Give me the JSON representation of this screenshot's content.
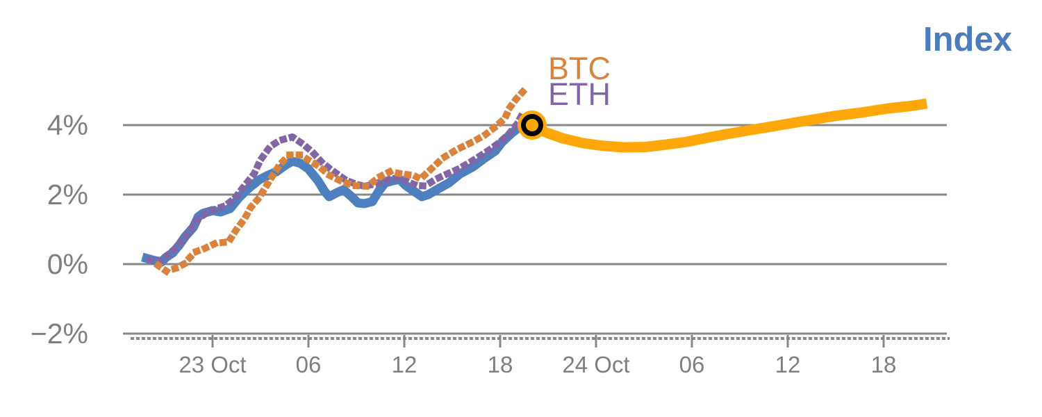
{
  "title": "Index",
  "labels": {
    "btc": "BTC",
    "eth": "ETH"
  },
  "colors": {
    "title": "#4b7cbe",
    "index_line": "#4e7fbe",
    "forecast_line": "#fda808",
    "btc_line": "#d9823c",
    "eth_line": "#8165a5",
    "grid": "#878787",
    "tick_text": "#7f7f7f",
    "marker_ring": "#000000",
    "marker_fill": "#fda808"
  },
  "chart_data": {
    "type": "line",
    "title": "Index",
    "subtitle": "",
    "x_unit": "hours relative to 23 Oct 00:00",
    "y_unit": "percent change",
    "grid": "horizontal only",
    "legend_position": "on-chart text labels (BTC, ETH) and title (Index)",
    "x_tick_hours": [
      0,
      6,
      12,
      18,
      24,
      30,
      36,
      42
    ],
    "x_tick_labels": [
      "23 Oct",
      "06",
      "12",
      "18",
      "24 Oct",
      "06",
      "12",
      "18"
    ],
    "y_tick_values": [
      4,
      2,
      0,
      -2
    ],
    "y_tick_labels": [
      "4%",
      "2%",
      "0%",
      "−2%"
    ],
    "xlim": [
      -5.6,
      46.0
    ],
    "ylim": [
      -2.4,
      5.6
    ],
    "marker": {
      "name": "current-value",
      "t": 20.0,
      "pct": 4.0
    },
    "series": [
      {
        "name": "Index (history)",
        "style": "solid",
        "color_key": "index_line",
        "points": [
          [
            -4.4,
            0.2
          ],
          [
            -4.0,
            0.15
          ],
          [
            -3.6,
            0.1
          ],
          [
            -3.2,
            0.06
          ],
          [
            -2.9,
            0.2
          ],
          [
            -2.5,
            0.32
          ],
          [
            -2.1,
            0.54
          ],
          [
            -1.7,
            0.8
          ],
          [
            -1.2,
            1.06
          ],
          [
            -0.9,
            1.36
          ],
          [
            -0.6,
            1.46
          ],
          [
            0.0,
            1.54
          ],
          [
            0.5,
            1.5
          ],
          [
            1.1,
            1.6
          ],
          [
            1.7,
            1.94
          ],
          [
            2.3,
            2.2
          ],
          [
            2.9,
            2.42
          ],
          [
            3.4,
            2.54
          ],
          [
            4.0,
            2.66
          ],
          [
            4.6,
            2.86
          ],
          [
            5.0,
            2.96
          ],
          [
            5.5,
            2.9
          ],
          [
            6.0,
            2.74
          ],
          [
            6.6,
            2.4
          ],
          [
            7.0,
            2.1
          ],
          [
            7.3,
            1.94
          ],
          [
            7.8,
            2.06
          ],
          [
            8.2,
            2.14
          ],
          [
            8.7,
            1.94
          ],
          [
            9.1,
            1.76
          ],
          [
            9.5,
            1.74
          ],
          [
            10.0,
            1.8
          ],
          [
            10.4,
            2.1
          ],
          [
            10.8,
            2.34
          ],
          [
            11.3,
            2.4
          ],
          [
            11.7,
            2.44
          ],
          [
            12.1,
            2.26
          ],
          [
            12.6,
            2.1
          ],
          [
            13.1,
            1.94
          ],
          [
            13.5,
            2.0
          ],
          [
            14.1,
            2.16
          ],
          [
            14.8,
            2.34
          ],
          [
            15.5,
            2.6
          ],
          [
            16.3,
            2.8
          ],
          [
            17.0,
            3.04
          ],
          [
            17.7,
            3.26
          ],
          [
            18.1,
            3.5
          ],
          [
            18.7,
            3.76
          ],
          [
            19.2,
            3.94
          ],
          [
            20.0,
            4.0
          ]
        ]
      },
      {
        "name": "Index (forecast)",
        "style": "solid",
        "color_key": "forecast_line",
        "points": [
          [
            20.0,
            4.0
          ],
          [
            20.8,
            3.8
          ],
          [
            21.9,
            3.62
          ],
          [
            23.2,
            3.48
          ],
          [
            24.5,
            3.4
          ],
          [
            25.8,
            3.36
          ],
          [
            27.1,
            3.37
          ],
          [
            28.4,
            3.44
          ],
          [
            29.7,
            3.52
          ],
          [
            31.0,
            3.64
          ],
          [
            32.3,
            3.75
          ],
          [
            33.7,
            3.86
          ],
          [
            35.0,
            3.96
          ],
          [
            36.3,
            4.06
          ],
          [
            37.6,
            4.16
          ],
          [
            38.9,
            4.26
          ],
          [
            40.6,
            4.36
          ],
          [
            42.3,
            4.48
          ],
          [
            43.7,
            4.55
          ],
          [
            44.7,
            4.62
          ]
        ]
      },
      {
        "name": "ETH",
        "style": "dotted",
        "color_key": "eth_line",
        "points": [
          [
            -3.9,
            0.12
          ],
          [
            -3.3,
            0.08
          ],
          [
            -2.7,
            0.3
          ],
          [
            -2.1,
            0.55
          ],
          [
            -1.5,
            0.9
          ],
          [
            -0.9,
            1.3
          ],
          [
            -0.3,
            1.5
          ],
          [
            0.3,
            1.6
          ],
          [
            0.8,
            1.68
          ],
          [
            1.4,
            1.9
          ],
          [
            1.9,
            2.2
          ],
          [
            2.6,
            2.6
          ],
          [
            3.0,
            3.0
          ],
          [
            3.6,
            3.38
          ],
          [
            4.2,
            3.56
          ],
          [
            5.0,
            3.66
          ],
          [
            5.7,
            3.44
          ],
          [
            6.3,
            3.2
          ],
          [
            6.8,
            2.95
          ],
          [
            7.3,
            2.76
          ],
          [
            7.9,
            2.56
          ],
          [
            8.4,
            2.4
          ],
          [
            9.0,
            2.3
          ],
          [
            9.5,
            2.24
          ],
          [
            10.1,
            2.3
          ],
          [
            10.6,
            2.38
          ],
          [
            11.1,
            2.44
          ],
          [
            11.7,
            2.5
          ],
          [
            12.3,
            2.35
          ],
          [
            12.8,
            2.26
          ],
          [
            13.3,
            2.25
          ],
          [
            14.0,
            2.45
          ],
          [
            14.7,
            2.6
          ],
          [
            15.3,
            2.72
          ],
          [
            16.0,
            2.9
          ],
          [
            16.7,
            3.1
          ],
          [
            17.3,
            3.28
          ],
          [
            17.9,
            3.48
          ],
          [
            18.5,
            3.72
          ],
          [
            19.0,
            4.0
          ],
          [
            19.4,
            4.32
          ]
        ]
      },
      {
        "name": "BTC",
        "style": "dotted",
        "color_key": "btc_line",
        "points": [
          [
            -3.4,
            -0.04
          ],
          [
            -2.9,
            -0.2
          ],
          [
            -2.3,
            -0.12
          ],
          [
            -1.8,
            0.0
          ],
          [
            -1.1,
            0.35
          ],
          [
            -0.5,
            0.45
          ],
          [
            0.2,
            0.6
          ],
          [
            1.0,
            0.64
          ],
          [
            1.5,
            1.0
          ],
          [
            2.0,
            1.3
          ],
          [
            2.4,
            1.64
          ],
          [
            2.9,
            1.9
          ],
          [
            3.3,
            2.2
          ],
          [
            3.7,
            2.5
          ],
          [
            4.2,
            2.86
          ],
          [
            4.8,
            3.14
          ],
          [
            5.5,
            3.14
          ],
          [
            6.0,
            3.0
          ],
          [
            6.7,
            2.8
          ],
          [
            7.3,
            2.56
          ],
          [
            8.0,
            2.4
          ],
          [
            8.8,
            2.26
          ],
          [
            9.7,
            2.24
          ],
          [
            10.4,
            2.5
          ],
          [
            11.1,
            2.66
          ],
          [
            11.8,
            2.6
          ],
          [
            12.6,
            2.55
          ],
          [
            13.0,
            2.45
          ],
          [
            13.6,
            2.7
          ],
          [
            14.4,
            3.05
          ],
          [
            15.3,
            3.3
          ],
          [
            16.2,
            3.5
          ],
          [
            17.0,
            3.7
          ],
          [
            17.7,
            3.95
          ],
          [
            18.3,
            4.2
          ],
          [
            18.6,
            4.5
          ],
          [
            19.0,
            4.75
          ],
          [
            19.5,
            5.0
          ]
        ]
      }
    ]
  }
}
